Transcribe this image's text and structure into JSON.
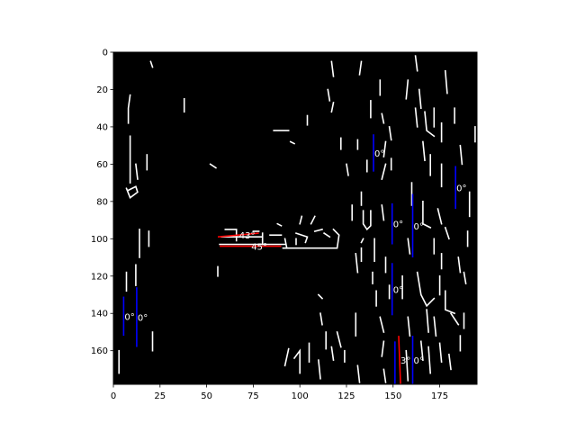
{
  "chart_data": {
    "type": "image-annotation",
    "title": "",
    "xlabel": "",
    "ylabel": "",
    "xlim": [
      0,
      195
    ],
    "ylim": [
      178,
      0
    ],
    "xticks": [
      0,
      25,
      50,
      75,
      100,
      125,
      150,
      175
    ],
    "yticks": [
      0,
      20,
      40,
      60,
      80,
      100,
      120,
      140,
      160
    ],
    "grid": false,
    "background_color": "#000000",
    "edge_color": "#ffffff",
    "edge_paths": [
      [
        [
          9,
          23
        ],
        [
          8,
          30
        ],
        [
          8,
          38
        ]
      ],
      [
        [
          9,
          45
        ],
        [
          9,
          70
        ]
      ],
      [
        [
          12,
          60
        ],
        [
          13,
          68
        ]
      ],
      [
        [
          7,
          73
        ],
        [
          9,
          78
        ],
        [
          13,
          75
        ],
        [
          12,
          72
        ],
        [
          8,
          74
        ]
      ],
      [
        [
          14,
          95
        ],
        [
          14,
          110
        ]
      ],
      [
        [
          12,
          114
        ],
        [
          12,
          125
        ]
      ],
      [
        [
          7,
          118
        ],
        [
          7,
          128
        ]
      ],
      [
        [
          19,
          96
        ],
        [
          19,
          104
        ]
      ],
      [
        [
          3,
          160
        ],
        [
          3,
          172
        ]
      ],
      [
        [
          21,
          150
        ],
        [
          21,
          160
        ]
      ],
      [
        [
          18,
          55
        ],
        [
          18,
          63
        ]
      ],
      [
        [
          20,
          5
        ],
        [
          21,
          8
        ]
      ],
      [
        [
          38,
          25
        ],
        [
          38,
          32
        ]
      ],
      [
        [
          52,
          60
        ],
        [
          55,
          62
        ]
      ],
      [
        [
          56,
          115
        ],
        [
          56,
          120
        ]
      ],
      [
        [
          58,
          99
        ],
        [
          80,
          99
        ]
      ],
      [
        [
          60,
          95
        ],
        [
          66,
          95
        ],
        [
          66,
          101
        ]
      ],
      [
        [
          75,
          96
        ],
        [
          78,
          96
        ]
      ],
      [
        [
          80,
          97
        ],
        [
          80,
          103
        ]
      ],
      [
        [
          84,
          98
        ],
        [
          90,
          98
        ]
      ],
      [
        [
          57,
          103
        ],
        [
          92,
          103
        ]
      ],
      [
        [
          88,
          92
        ],
        [
          90,
          93
        ]
      ],
      [
        [
          92,
          100
        ],
        [
          93,
          105
        ]
      ],
      [
        [
          91,
          105
        ],
        [
          120,
          105
        ],
        [
          121,
          98
        ],
        [
          118,
          95
        ]
      ],
      [
        [
          98,
          97
        ],
        [
          104,
          99
        ],
        [
          103,
          102
        ]
      ],
      [
        [
          108,
          96
        ],
        [
          112,
          95
        ]
      ],
      [
        [
          113,
          97
        ],
        [
          116,
          99
        ]
      ],
      [
        [
          100,
          92
        ],
        [
          101,
          88
        ]
      ],
      [
        [
          106,
          92
        ],
        [
          108,
          88
        ]
      ],
      [
        [
          98,
          100
        ],
        [
          98,
          103
        ]
      ],
      [
        [
          86,
          42
        ],
        [
          94,
          42
        ]
      ],
      [
        [
          95,
          48
        ],
        [
          97,
          49
        ]
      ],
      [
        [
          104,
          34
        ],
        [
          104,
          39
        ]
      ],
      [
        [
          117,
          5
        ],
        [
          118,
          13
        ]
      ],
      [
        [
          115,
          20
        ],
        [
          116,
          26
        ]
      ],
      [
        [
          118,
          27
        ],
        [
          117,
          32
        ]
      ],
      [
        [
          125,
          60
        ],
        [
          126,
          66
        ]
      ],
      [
        [
          122,
          46
        ],
        [
          122,
          52
        ]
      ],
      [
        [
          131,
          47
        ],
        [
          131,
          52
        ]
      ],
      [
        [
          128,
          82
        ],
        [
          128,
          90
        ]
      ],
      [
        [
          110,
          130
        ],
        [
          112,
          132
        ]
      ],
      [
        [
          111,
          140
        ],
        [
          112,
          146
        ]
      ],
      [
        [
          114,
          150
        ],
        [
          114,
          159
        ]
      ],
      [
        [
          117,
          158
        ],
        [
          118,
          165
        ]
      ],
      [
        [
          94,
          159
        ],
        [
          92,
          168
        ]
      ],
      [
        [
          97,
          164
        ],
        [
          100,
          160
        ],
        [
          100,
          172
        ]
      ],
      [
        [
          105,
          156
        ],
        [
          105,
          166
        ]
      ],
      [
        [
          110,
          165
        ],
        [
          111,
          175
        ]
      ],
      [
        [
          120,
          150
        ],
        [
          122,
          158
        ]
      ],
      [
        [
          124,
          160
        ],
        [
          124,
          166
        ]
      ],
      [
        [
          130,
          140
        ],
        [
          130,
          152
        ]
      ],
      [
        [
          131,
          168
        ],
        [
          132,
          177
        ]
      ],
      [
        [
          133,
          75
        ],
        [
          133,
          82
        ]
      ],
      [
        [
          136,
          58
        ],
        [
          136,
          64
        ]
      ],
      [
        [
          133,
          5
        ],
        [
          132,
          12
        ]
      ],
      [
        [
          138,
          26
        ],
        [
          138,
          35
        ]
      ],
      [
        [
          143,
          15
        ],
        [
          143,
          23
        ]
      ],
      [
        [
          144,
          33
        ],
        [
          145,
          38
        ]
      ],
      [
        [
          148,
          40
        ],
        [
          149,
          47
        ]
      ],
      [
        [
          146,
          48
        ],
        [
          145,
          56
        ]
      ],
      [
        [
          149,
          57
        ],
        [
          149,
          63
        ]
      ],
      [
        [
          146,
          60
        ],
        [
          144,
          68
        ]
      ],
      [
        [
          134,
          85
        ],
        [
          134,
          92
        ],
        [
          136,
          95
        ],
        [
          138,
          93
        ],
        [
          138,
          85
        ]
      ],
      [
        [
          130,
          108
        ],
        [
          131,
          118
        ]
      ],
      [
        [
          133,
          105
        ],
        [
          133,
          112
        ]
      ],
      [
        [
          134,
          100
        ],
        [
          133,
          102
        ]
      ],
      [
        [
          139,
          118
        ],
        [
          139,
          124
        ]
      ],
      [
        [
          140,
          100
        ],
        [
          140,
          112
        ]
      ],
      [
        [
          144,
          82
        ],
        [
          145,
          90
        ]
      ],
      [
        [
          146,
          110
        ],
        [
          146,
          118
        ]
      ],
      [
        [
          141,
          128
        ],
        [
          141,
          136
        ]
      ],
      [
        [
          143,
          142
        ],
        [
          145,
          150
        ]
      ],
      [
        [
          145,
          155
        ],
        [
          144,
          163
        ]
      ],
      [
        [
          145,
          170
        ],
        [
          146,
          177
        ]
      ],
      [
        [
          148,
          125
        ],
        [
          148,
          132
        ]
      ],
      [
        [
          158,
          15
        ],
        [
          157,
          25
        ]
      ],
      [
        [
          162,
          2
        ],
        [
          163,
          10
        ]
      ],
      [
        [
          164,
          20
        ],
        [
          165,
          30
        ]
      ],
      [
        [
          162,
          30
        ],
        [
          163,
          40
        ]
      ],
      [
        [
          167,
          32
        ],
        [
          168,
          42
        ],
        [
          172,
          45
        ]
      ],
      [
        [
          172,
          30
        ],
        [
          172,
          40
        ]
      ],
      [
        [
          166,
          48
        ],
        [
          167,
          58
        ]
      ],
      [
        [
          176,
          38
        ],
        [
          176,
          48
        ]
      ],
      [
        [
          170,
          55
        ],
        [
          170,
          66
        ]
      ],
      [
        [
          176,
          60
        ],
        [
          176,
          72
        ]
      ],
      [
        [
          160,
          70
        ],
        [
          160,
          82
        ]
      ],
      [
        [
          166,
          80
        ],
        [
          166,
          92
        ],
        [
          170,
          94
        ]
      ],
      [
        [
          174,
          84
        ],
        [
          176,
          92
        ]
      ],
      [
        [
          178,
          94
        ],
        [
          180,
          100
        ]
      ],
      [
        [
          172,
          100
        ],
        [
          172,
          108
        ]
      ],
      [
        [
          176,
          108
        ],
        [
          176,
          116
        ]
      ],
      [
        [
          158,
          100
        ],
        [
          159,
          108
        ]
      ],
      [
        [
          155,
          120
        ],
        [
          155,
          132
        ]
      ],
      [
        [
          163,
          118
        ],
        [
          165,
          130
        ],
        [
          168,
          136
        ],
        [
          172,
          132
        ]
      ],
      [
        [
          175,
          120
        ],
        [
          175,
          130
        ]
      ],
      [
        [
          178,
          128
        ],
        [
          178,
          138
        ],
        [
          183,
          140
        ]
      ],
      [
        [
          181,
          140
        ],
        [
          185,
          146
        ]
      ],
      [
        [
          168,
          138
        ],
        [
          169,
          150
        ]
      ],
      [
        [
          172,
          142
        ],
        [
          173,
          152
        ]
      ],
      [
        [
          158,
          142
        ],
        [
          159,
          152
        ]
      ],
      [
        [
          165,
          155
        ],
        [
          166,
          165
        ]
      ],
      [
        [
          169,
          158
        ],
        [
          170,
          172
        ]
      ],
      [
        [
          175,
          156
        ],
        [
          176,
          166
        ]
      ],
      [
        [
          180,
          162
        ],
        [
          181,
          170
        ]
      ],
      [
        [
          186,
          152
        ],
        [
          186,
          160
        ]
      ],
      [
        [
          157,
          160
        ],
        [
          158,
          176
        ]
      ],
      [
        [
          188,
          140
        ],
        [
          188,
          148
        ]
      ],
      [
        [
          185,
          110
        ],
        [
          186,
          118
        ]
      ],
      [
        [
          190,
          96
        ],
        [
          190,
          104
        ]
      ],
      [
        [
          188,
          118
        ],
        [
          189,
          124
        ]
      ],
      [
        [
          178,
          10
        ],
        [
          179,
          22
        ]
      ],
      [
        [
          183,
          30
        ],
        [
          183,
          38
        ]
      ],
      [
        [
          186,
          50
        ],
        [
          187,
          60
        ]
      ],
      [
        [
          191,
          75
        ],
        [
          191,
          88
        ]
      ],
      [
        [
          194,
          40
        ],
        [
          194,
          48
        ]
      ]
    ],
    "annotations": [
      {
        "label": "0°",
        "color": "#0000ff",
        "x": [
          139.5,
          139.5
        ],
        "y": [
          44,
          64
        ]
      },
      {
        "label": "0°",
        "color": "#0000ff",
        "x": [
          183.5,
          183.5
        ],
        "y": [
          61,
          84
        ]
      },
      {
        "label": "0°",
        "color": "#0000ff",
        "x": [
          149.5,
          149.5
        ],
        "y": [
          81,
          103
        ]
      },
      {
        "label": "0°",
        "color": "#0000ff",
        "x": [
          160.5,
          160.5
        ],
        "y": [
          76,
          110
        ]
      },
      {
        "label": "0°",
        "color": "#0000ff",
        "x": [
          149.5,
          149.5
        ],
        "y": [
          113,
          141
        ]
      },
      {
        "label": "0°",
        "color": "#0000ff",
        "x": [
          5.5,
          5.5
        ],
        "y": [
          131,
          152
        ]
      },
      {
        "label": "0°",
        "color": "#0000ff",
        "x": [
          12.5,
          12.5
        ],
        "y": [
          126,
          158
        ]
      },
      {
        "label": "0°",
        "color": "#0000ff",
        "x": [
          160.5,
          160.5
        ],
        "y": [
          152,
          178
        ]
      },
      {
        "label": "43°",
        "color": "#ff0000",
        "x": [
          56,
          78
        ],
        "y": [
          99,
          97
        ]
      },
      {
        "label": "45°",
        "color": "#ff0000",
        "x": [
          57,
          90
        ],
        "y": [
          104,
          104
        ]
      },
      {
        "label": "3°",
        "color": "#ff0000",
        "x": [
          153,
          154
        ],
        "y": [
          152,
          178
        ]
      },
      {
        "label": "",
        "color": "#0000ff",
        "x": [
          151,
          151
        ],
        "y": [
          155,
          178
        ]
      }
    ]
  }
}
